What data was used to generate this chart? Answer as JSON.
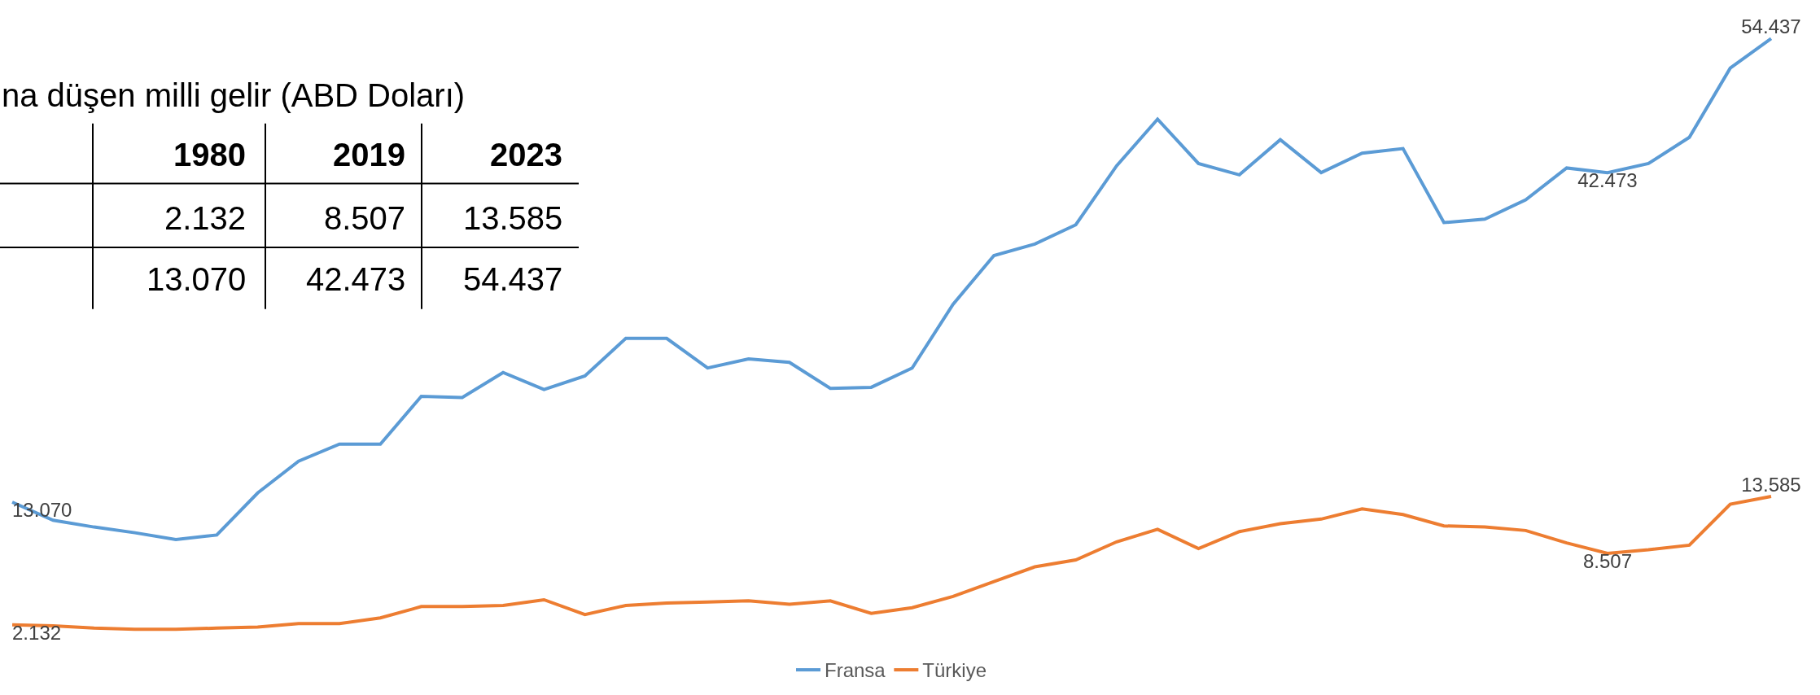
{
  "chart_data": {
    "type": "line",
    "title": "na düşen milli gelir (ABD Doları)",
    "categories": [
      null,
      null,
      null,
      null,
      null,
      null,
      null,
      null,
      null,
      null,
      null,
      null,
      null,
      null,
      null,
      null,
      null,
      null,
      null,
      null,
      null,
      null,
      null,
      null,
      null,
      null,
      null,
      null,
      null,
      null,
      null,
      null,
      null,
      null,
      null,
      null,
      null,
      null,
      null,
      null,
      null,
      null,
      null,
      null
    ],
    "series": [
      {
        "name": "Fransa",
        "color": "#5b9bd5",
        "values": [
          13.07,
          11.46,
          10.85,
          10.34,
          9.73,
          10.14,
          13.89,
          16.73,
          18.25,
          18.25,
          22.51,
          22.41,
          24.64,
          23.12,
          24.33,
          27.68,
          27.68,
          25.04,
          25.85,
          25.55,
          23.22,
          23.32,
          25.04,
          30.72,
          35.08,
          36.1,
          37.82,
          43.09,
          47.25,
          43.29,
          42.28,
          45.42,
          42.48,
          44.21,
          44.62,
          38.02,
          38.33,
          40.05,
          42.89,
          42.473,
          43.29,
          45.63,
          51.81,
          54.437
        ],
        "value_labels": [
          "13.070",
          null,
          null,
          null,
          null,
          null,
          null,
          null,
          null,
          null,
          null,
          null,
          null,
          null,
          null,
          null,
          null,
          null,
          null,
          null,
          null,
          null,
          null,
          null,
          null,
          null,
          null,
          null,
          null,
          null,
          null,
          null,
          null,
          null,
          null,
          null,
          null,
          null,
          null,
          "42.473",
          null,
          null,
          null,
          "54.437"
        ]
      },
      {
        "name": "Türkiye",
        "color": "#ed7d31",
        "values": [
          2.132,
          2.03,
          1.83,
          1.72,
          1.72,
          1.83,
          1.93,
          2.23,
          2.23,
          2.74,
          3.75,
          3.75,
          3.85,
          4.36,
          3.04,
          3.85,
          4.06,
          4.16,
          4.26,
          3.95,
          4.26,
          3.14,
          3.65,
          4.66,
          5.98,
          7.3,
          7.91,
          9.53,
          10.65,
          8.92,
          10.44,
          11.15,
          11.56,
          12.47,
          11.96,
          10.95,
          10.85,
          10.54,
          9.43,
          8.507,
          8.82,
          9.23,
          12.88,
          13.585
        ],
        "value_labels": [
          "2.132",
          null,
          null,
          null,
          null,
          null,
          null,
          null,
          null,
          null,
          null,
          null,
          null,
          null,
          null,
          null,
          null,
          null,
          null,
          null,
          null,
          null,
          null,
          null,
          null,
          null,
          null,
          null,
          null,
          null,
          null,
          null,
          null,
          null,
          null,
          null,
          null,
          null,
          null,
          "8.507",
          null,
          null,
          null,
          "13.585"
        ]
      }
    ],
    "annotations": [
      "1980",
      "2019",
      "2023",
      "2.132",
      "8.507",
      "13.585",
      "13.070",
      "42.473",
      "54.437"
    ],
    "legend": "bottom",
    "tick_labels": false,
    "line_style": "solid",
    "marker": "none"
  }
}
